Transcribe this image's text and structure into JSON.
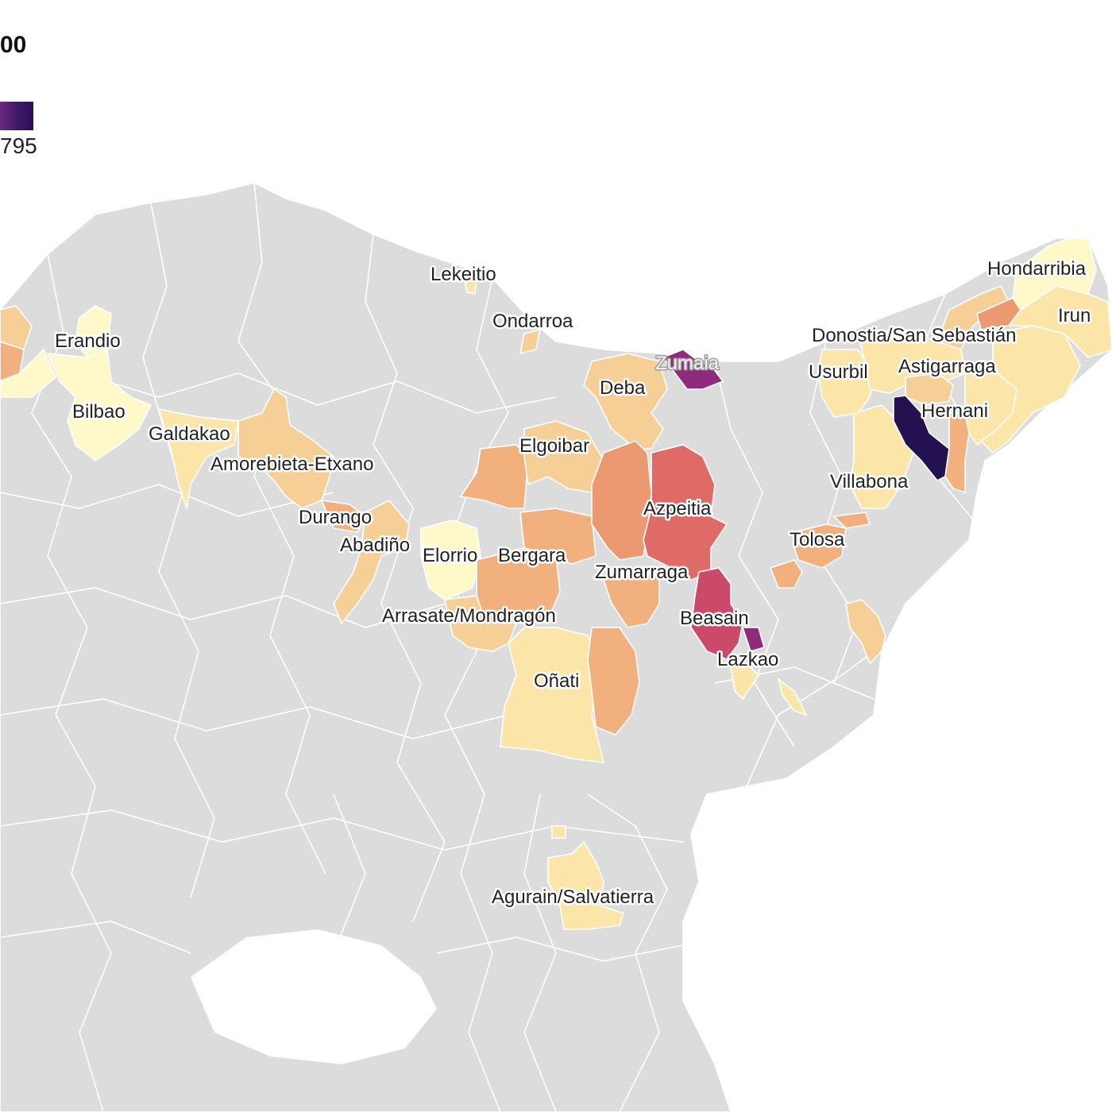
{
  "title_fragment": "00",
  "legend": {
    "max_label": "795",
    "colors": [
      "#fff8c8",
      "#fbe5a8",
      "#f6cf96",
      "#f2b07f",
      "#ec9870",
      "#df6b66",
      "#cb4a6a",
      "#8e2b7c",
      "#24114f"
    ]
  },
  "labels": [
    {
      "name": "Lekeitio"
    },
    {
      "name": "Ondarroa"
    },
    {
      "name": "Hondarribia"
    },
    {
      "name": "Irun"
    },
    {
      "name": "Erandio"
    },
    {
      "name": "Donostia/San Sebastián"
    },
    {
      "name": "Zumaia"
    },
    {
      "name": "Usurbil"
    },
    {
      "name": "Astigarraga"
    },
    {
      "name": "Deba"
    },
    {
      "name": "Hernani"
    },
    {
      "name": "Bilbao"
    },
    {
      "name": "Galdakao"
    },
    {
      "name": "Elgoibar"
    },
    {
      "name": "Amorebieta-Etxano"
    },
    {
      "name": "Villabona"
    },
    {
      "name": "Azpeitia"
    },
    {
      "name": "Durango"
    },
    {
      "name": "Tolosa"
    },
    {
      "name": "Abadiño"
    },
    {
      "name": "Elorrio"
    },
    {
      "name": "Bergara"
    },
    {
      "name": "Zumarraga"
    },
    {
      "name": "Arrasate/Mondragón"
    },
    {
      "name": "Beasain"
    },
    {
      "name": "Lazkao"
    },
    {
      "name": "Oñati"
    },
    {
      "name": "Agurain/Salvatierra"
    }
  ]
}
